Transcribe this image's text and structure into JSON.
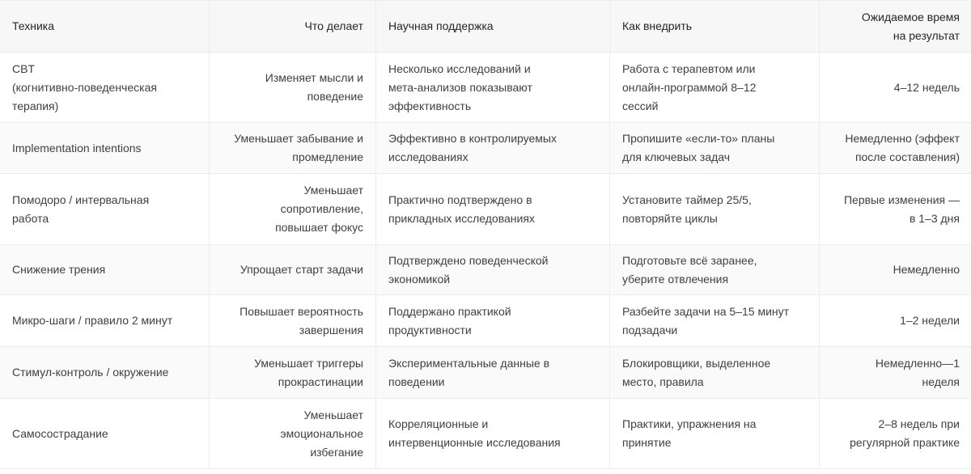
{
  "headers": [
    "Техника",
    "Что делает",
    "Научная поддержка",
    "Как внедрить",
    "Ожидаемое время\nна результат"
  ],
  "rows": [
    [
      "CBT\n(когнитивно-поведенческая\nтерапия)",
      "Изменяет мысли и\nповедение",
      "Несколько исследований и\nмета-анализов показывают\nэффективность",
      "Работа с терапевтом или\nонлайн-программой 8–12\nсессий",
      "4–12 недель"
    ],
    [
      "Implementation intentions",
      "Уменьшает забывание и\nпромедление",
      "Эффективно в контролируемых\nисследованиях",
      "Пропишите «если-то» планы\nдля ключевых задач",
      "Немедленно (эффект\nпосле составления)"
    ],
    [
      "Помодоро / интервальная\nработа",
      "Уменьшает\nсопротивление,\nповышает фокус",
      "Практично подтверждено в\nприкладных исследованиях",
      "Установите таймер 25/5,\nповторяйте циклы",
      "Первые изменения —\nв 1–3 дня"
    ],
    [
      "Снижение трения",
      "Упрощает старт задачи",
      "Подтверждено поведенческой\nэкономикой",
      "Подготовьте всё заранее,\nуберите отвлечения",
      "Немедленно"
    ],
    [
      "Микро-шаги / правило 2 минут",
      "Повышает вероятность\nзавершения",
      "Поддержано практикой\nпродуктивности",
      "Разбейте задачи на 5–15 минут\nподзадачи",
      "1–2 недели"
    ],
    [
      "Стимул-контроль / окружение",
      "Уменьшает триггеры\nпрокрастинации",
      "Экспериментальные данные в\nповедении",
      "Блокировщики, выделенное\nместо, правила",
      "Немедленно—1\nнеделя"
    ],
    [
      "Самосострадание",
      "Уменьшает\nэмоциональное\nизбегание",
      "Корреляционные и\nинтервенционные исследования",
      "Практики, упражнения на\nпринятие",
      "2–8 недель при\nрегулярной практике"
    ]
  ]
}
